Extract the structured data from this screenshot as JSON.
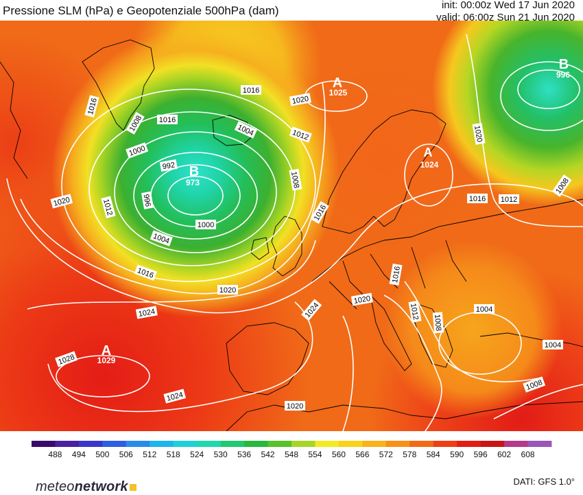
{
  "header": {
    "title": "Pressione SLM (hPa) e Geopotenziale 500hPa (dam)",
    "init": "init: 00:00z Wed 17 Jun 2020",
    "valid": "valid: 06:00z Sun 21 Jun 2020"
  },
  "pressure_centers": [
    {
      "type": "B",
      "value": "973"
    },
    {
      "type": "A",
      "value": "1025"
    },
    {
      "type": "A",
      "value": "1029"
    },
    {
      "type": "B",
      "value": "996"
    },
    {
      "type": "A",
      "value": "1024"
    }
  ],
  "isobar_labels": [
    "1016",
    "1008",
    "1016",
    "1000",
    "992",
    "996",
    "1012",
    "1004",
    "1000",
    "1016",
    "1020",
    "1016",
    "1020",
    "1012",
    "1008",
    "1004",
    "1016",
    "1020",
    "1024",
    "1028",
    "1024",
    "1020",
    "1020",
    "1024",
    "1020",
    "1016",
    "1012",
    "1008",
    "1004",
    "1016",
    "1012",
    "1008",
    "1004",
    "1008"
  ],
  "colorbar": {
    "ticks": [
      "488",
      "494",
      "500",
      "506",
      "512",
      "518",
      "524",
      "530",
      "536",
      "542",
      "548",
      "554",
      "560",
      "566",
      "572",
      "578",
      "584",
      "590",
      "596",
      "602",
      "608"
    ],
    "colors": [
      "#3a0a6a",
      "#4a1fa0",
      "#3a37c8",
      "#2f5fe0",
      "#2a8ae8",
      "#1fb4ea",
      "#1fd0d8",
      "#1fd8b0",
      "#20c870",
      "#27b83c",
      "#58c22a",
      "#a6d628",
      "#f4ea22",
      "#f9d21c",
      "#f8b21c",
      "#f69018",
      "#f26a16",
      "#ec3f14",
      "#e01e14",
      "#c81616",
      "#b43a8a",
      "#9a56b8"
    ]
  },
  "footer": {
    "brand_prefix": "meteo",
    "brand_bold": "network",
    "source": "DATI:  GFS  1.0°"
  }
}
